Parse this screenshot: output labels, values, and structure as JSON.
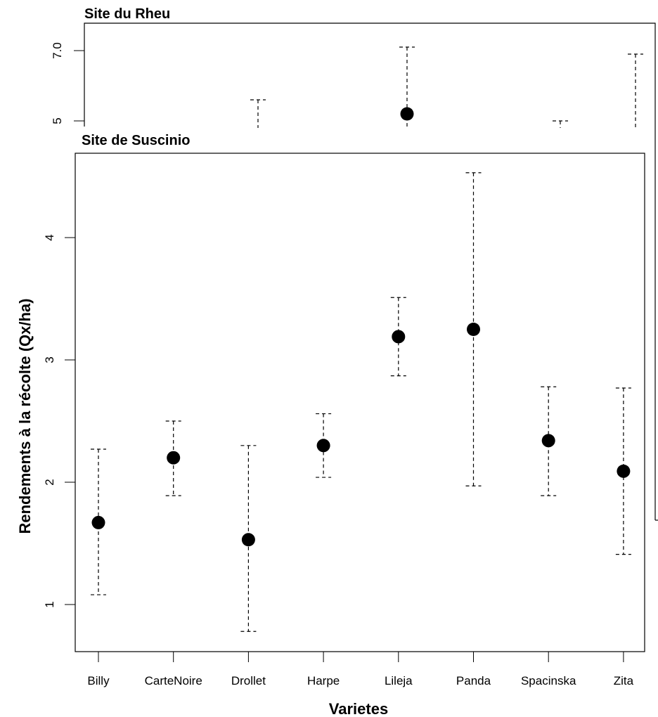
{
  "chart_data": [
    {
      "type": "scatter",
      "title": "Site du Rheu",
      "y_ticks": [
        "7.0",
        "5"
      ],
      "points": [
        {
          "category": "Drollet",
          "value": null,
          "upper": 5.6
        },
        {
          "category": "Lileja",
          "value": 5.2,
          "upper": 7.1
        },
        {
          "category": "Spacinska",
          "value": null,
          "upper": 5.0
        },
        {
          "category": "Zita",
          "value": null,
          "upper": 6.9
        }
      ]
    },
    {
      "type": "scatter",
      "title": "Site de Suscinio",
      "xlabel": "Varietes",
      "ylabel": "Rendements à la récolte (Qx/ha)",
      "categories": [
        "Billy",
        "CarteNoire",
        "Drollet",
        "Harpe",
        "Lileja",
        "Panda",
        "Spacinska",
        "Zita"
      ],
      "values": [
        1.67,
        2.2,
        1.53,
        2.3,
        3.19,
        3.25,
        2.34,
        2.09
      ],
      "lower": [
        1.08,
        1.89,
        0.78,
        2.04,
        2.87,
        1.97,
        1.89,
        1.41
      ],
      "upper": [
        2.27,
        2.5,
        2.3,
        2.56,
        3.51,
        4.53,
        2.78,
        2.77
      ],
      "y_ticks": [
        1,
        2,
        3,
        4
      ],
      "grid": false
    }
  ]
}
